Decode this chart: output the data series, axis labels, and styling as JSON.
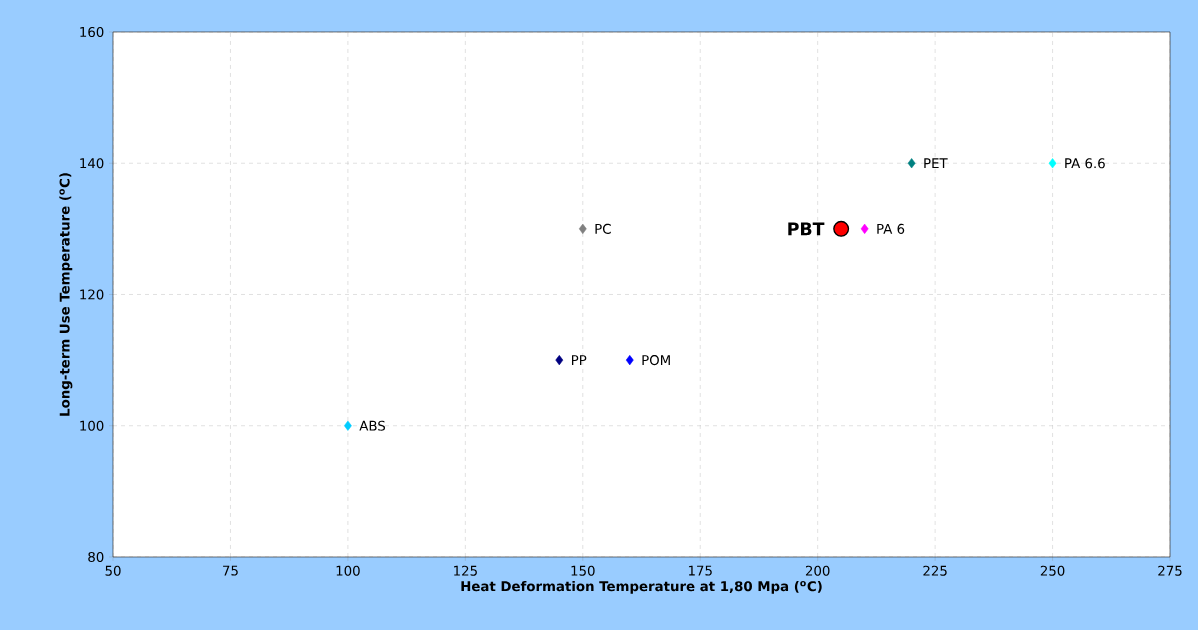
{
  "chart_data": {
    "type": "scatter",
    "xlabel": "Heat Deformation Temperature at 1,80 Mpa ($^{o}$C)",
    "ylabel": "Long-term Use Temperature ($^{o}$C)",
    "xlim": [
      50,
      275
    ],
    "xticks": [
      50,
      75,
      100,
      125,
      150,
      175,
      200,
      225,
      250,
      275
    ],
    "ylim": [
      80,
      160
    ],
    "yticks": [
      80,
      100,
      120,
      140,
      160
    ],
    "grid": true,
    "marker": "diamond",
    "series": [
      {
        "name": "ABS",
        "color": "#00ccff",
        "x": [
          100
        ],
        "values": [
          100
        ]
      },
      {
        "name": "PP",
        "color": "#000080",
        "x": [
          145
        ],
        "values": [
          110
        ]
      },
      {
        "name": "POM",
        "color": "#0000ff",
        "x": [
          160
        ],
        "values": [
          110
        ]
      },
      {
        "name": "PC",
        "color": "#808080",
        "x": [
          150
        ],
        "values": [
          130
        ]
      },
      {
        "name": "PBT",
        "color": "#ff0000",
        "x": [
          205
        ],
        "values": [
          130
        ],
        "marker": "circle"
      },
      {
        "name": "PA 6",
        "color": "#ff00ff",
        "x": [
          210
        ],
        "values": [
          130
        ]
      },
      {
        "name": "PET",
        "color": "#008080",
        "x": [
          220
        ],
        "values": [
          140
        ]
      },
      {
        "name": "PA 6.6",
        "color": "#00ffff",
        "x": [
          250
        ],
        "values": [
          140
        ]
      }
    ]
  }
}
